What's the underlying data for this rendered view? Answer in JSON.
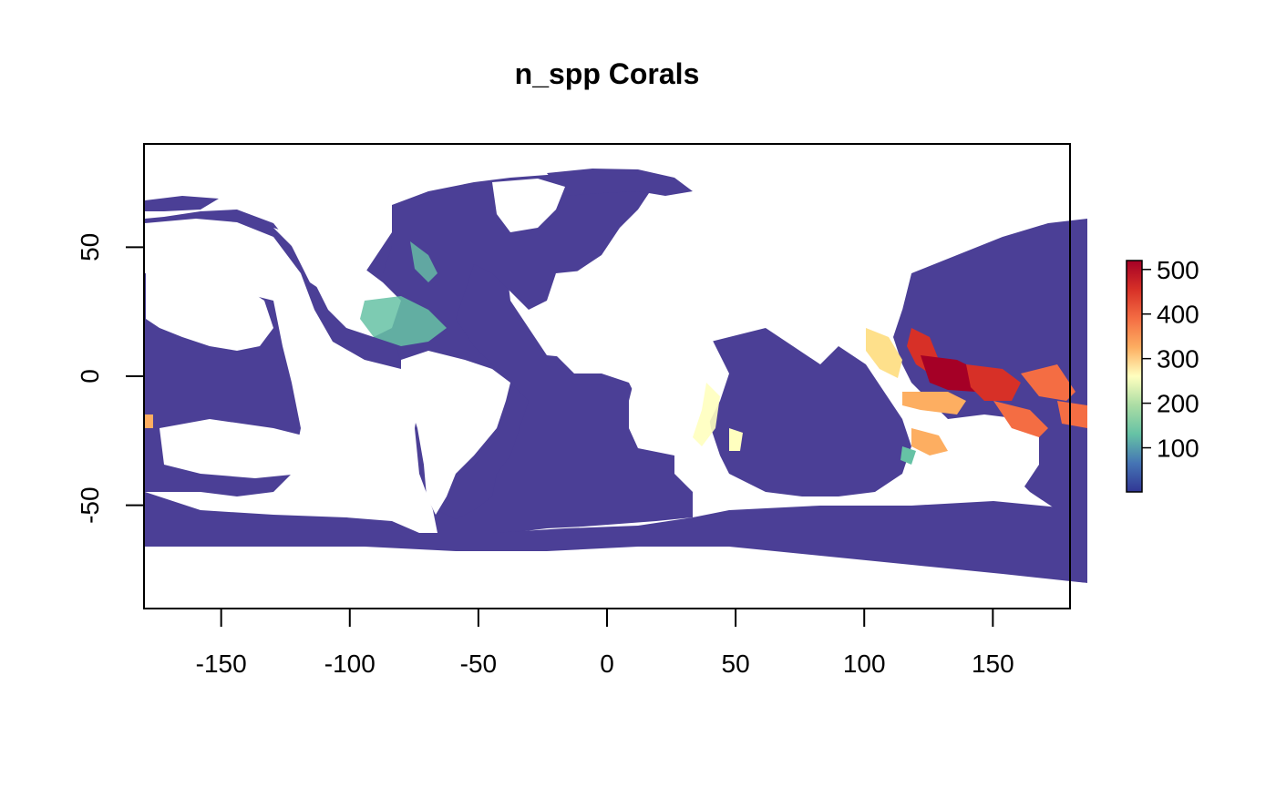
{
  "title": "n_spp Corals",
  "colors": {
    "ocean_low": "#4b3f96",
    "palette": [
      "#313695",
      "#4575b4",
      "#66c2a5",
      "#abdda4",
      "#ffffbf",
      "#fdae61",
      "#f46d43",
      "#d73027",
      "#a50026"
    ]
  },
  "x_axis": {
    "range": [
      -180,
      180
    ],
    "ticks": [
      {
        "value": -150,
        "label": "-150"
      },
      {
        "value": -100,
        "label": "-100"
      },
      {
        "value": -50,
        "label": "-50"
      },
      {
        "value": 0,
        "label": "0"
      },
      {
        "value": 50,
        "label": "50"
      },
      {
        "value": 100,
        "label": "100"
      },
      {
        "value": 150,
        "label": "150"
      }
    ]
  },
  "y_axis": {
    "range": [
      -90,
      90
    ],
    "ticks": [
      {
        "value": 50,
        "label": "50"
      },
      {
        "value": 0,
        "label": "0"
      },
      {
        "value": -50,
        "label": "-50"
      }
    ]
  },
  "legend": {
    "range": [
      1,
      520
    ],
    "ticks": [
      {
        "value": 100,
        "label": "100"
      },
      {
        "value": 200,
        "label": "200"
      },
      {
        "value": 300,
        "label": "300"
      },
      {
        "value": 400,
        "label": "400"
      },
      {
        "value": 500,
        "label": "500"
      }
    ]
  }
}
